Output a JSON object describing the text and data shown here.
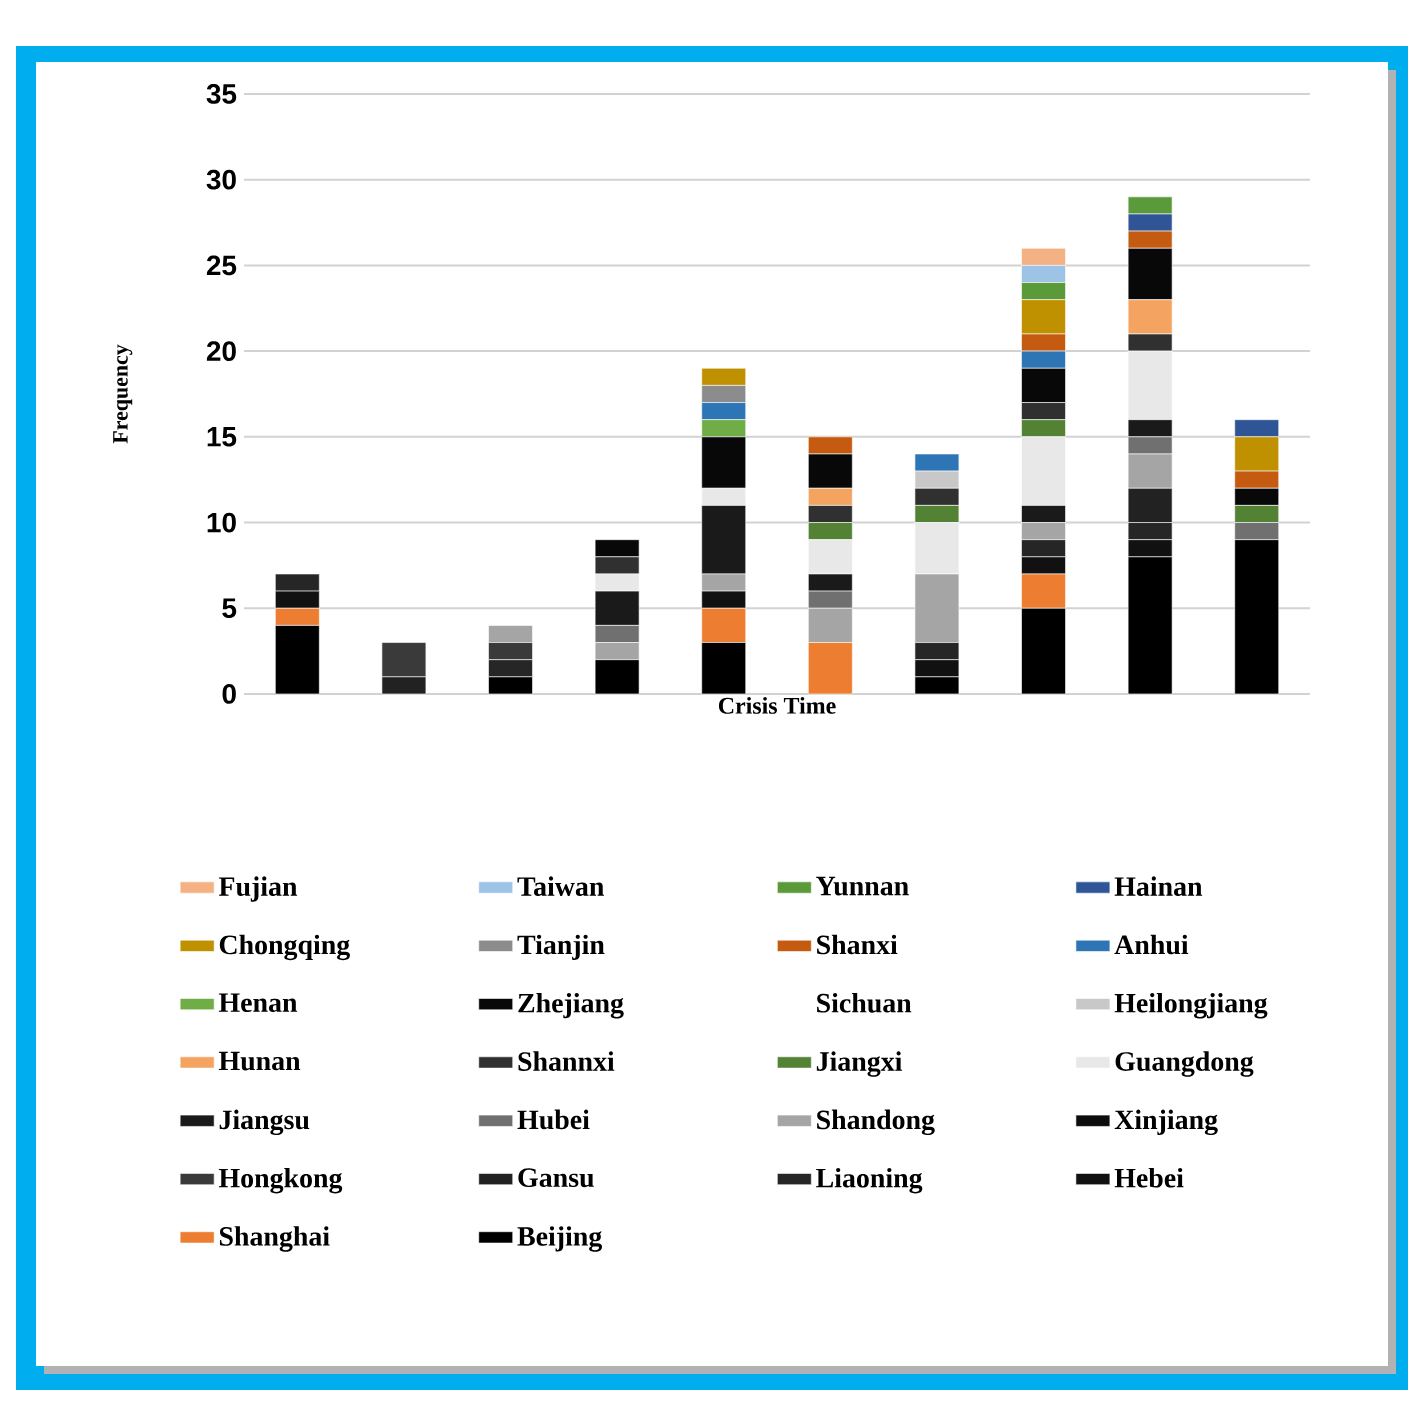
{
  "chart_data": {
    "type": "bar",
    "stacked": true,
    "xlabel": "Crisis Time",
    "ylabel": "Frequency",
    "categories": [
      null,
      null,
      null,
      null,
      null,
      null,
      null,
      null,
      null,
      null
    ],
    "ylim": [
      0,
      35
    ],
    "yticks": [
      0,
      5,
      10,
      15,
      20,
      25,
      30,
      35
    ],
    "grid": "y",
    "legend": "bottom",
    "tick_labels": "y",
    "series": [
      {
        "name": "Beijing",
        "color": "#000000",
        "values": [
          4,
          0,
          1,
          2,
          3,
          0,
          1,
          5,
          8,
          9
        ]
      },
      {
        "name": "Shanghai",
        "color": "#ed7d31",
        "values": [
          1,
          0,
          0,
          0,
          2,
          3,
          0,
          2,
          0,
          0
        ]
      },
      {
        "name": "Hebei",
        "color": "#111111",
        "values": [
          1,
          0,
          0,
          0,
          1,
          0,
          1,
          1,
          1,
          0
        ]
      },
      {
        "name": "Liaoning",
        "color": "#262626",
        "values": [
          1,
          0,
          1,
          0,
          0,
          0,
          1,
          1,
          1,
          0
        ]
      },
      {
        "name": "Gansu",
        "color": "#222222",
        "values": [
          0,
          1,
          0,
          0,
          0,
          0,
          0,
          0,
          2,
          0
        ]
      },
      {
        "name": "Hongkong",
        "color": "#3a3a3a",
        "values": [
          0,
          2,
          1,
          0,
          0,
          0,
          0,
          0,
          0,
          0
        ]
      },
      {
        "name": "Xinjiang",
        "color": "#0d0d0d",
        "values": [
          0,
          0,
          0,
          0,
          0,
          0,
          0,
          0,
          0,
          0
        ]
      },
      {
        "name": "Shandong",
        "color": "#a5a5a5",
        "values": [
          0,
          0,
          1,
          1,
          1,
          2,
          4,
          1,
          2,
          0
        ]
      },
      {
        "name": "Hubei",
        "color": "#707070",
        "values": [
          0,
          0,
          0,
          1,
          0,
          1,
          0,
          0,
          1,
          1
        ]
      },
      {
        "name": "Jiangsu",
        "color": "#1a1a1a",
        "values": [
          0,
          0,
          0,
          2,
          4,
          1,
          0,
          1,
          1,
          0
        ]
      },
      {
        "name": "Guangdong",
        "color": "#e8e8e8",
        "values": [
          0,
          0,
          0,
          1,
          1,
          2,
          3,
          4,
          4,
          0
        ]
      },
      {
        "name": "Jiangxi",
        "color": "#548235",
        "values": [
          0,
          0,
          0,
          0,
          0,
          1,
          1,
          1,
          0,
          1
        ]
      },
      {
        "name": "Shannxi",
        "color": "#303030",
        "values": [
          0,
          0,
          0,
          1,
          0,
          1,
          1,
          1,
          1,
          0
        ]
      },
      {
        "name": "Hunan",
        "color": "#f4a460",
        "values": [
          0,
          0,
          0,
          0,
          0,
          1,
          0,
          0,
          2,
          0
        ]
      },
      {
        "name": "Heilongjiang",
        "color": "#c8c8c8",
        "values": [
          0,
          0,
          0,
          0,
          0,
          0,
          1,
          0,
          0,
          0
        ]
      },
      {
        "name": "Sichuan",
        "values": [
          0,
          0,
          0,
          0,
          0,
          0,
          0,
          0,
          0,
          0
        ]
      },
      {
        "name": "Zhejiang",
        "color": "#080808",
        "values": [
          0,
          0,
          0,
          1,
          3,
          2,
          0,
          2,
          3,
          1
        ]
      },
      {
        "name": "Henan",
        "color": "#70ad47",
        "values": [
          0,
          0,
          0,
          0,
          1,
          0,
          0,
          0,
          0,
          0
        ]
      },
      {
        "name": "Anhui",
        "color": "#2e75b6",
        "values": [
          0,
          0,
          0,
          0,
          1,
          0,
          1,
          1,
          0,
          0
        ]
      },
      {
        "name": "Shanxi",
        "color": "#c55a11",
        "values": [
          0,
          0,
          0,
          0,
          0,
          1,
          0,
          1,
          1,
          1
        ]
      },
      {
        "name": "Tianjin",
        "color": "#8c8c8c",
        "values": [
          0,
          0,
          0,
          0,
          1,
          0,
          0,
          0,
          0,
          0
        ]
      },
      {
        "name": "Chongqing",
        "color": "#bf9000",
        "values": [
          0,
          0,
          0,
          0,
          1,
          0,
          0,
          2,
          0,
          2
        ]
      },
      {
        "name": "Hainan",
        "color": "#2f5597",
        "values": [
          0,
          0,
          0,
          0,
          0,
          0,
          0,
          0,
          1,
          1
        ]
      },
      {
        "name": "Yunnan",
        "color": "#5b9a3a",
        "values": [
          0,
          0,
          0,
          0,
          0,
          0,
          0,
          1,
          1,
          0
        ]
      },
      {
        "name": "Taiwan",
        "color": "#9dc3e6",
        "values": [
          0,
          0,
          0,
          0,
          0,
          0,
          0,
          1,
          0,
          0
        ]
      },
      {
        "name": "Fujian",
        "color": "#f4b183",
        "values": [
          0,
          0,
          0,
          0,
          0,
          0,
          0,
          1,
          0,
          0
        ]
      }
    ]
  }
}
